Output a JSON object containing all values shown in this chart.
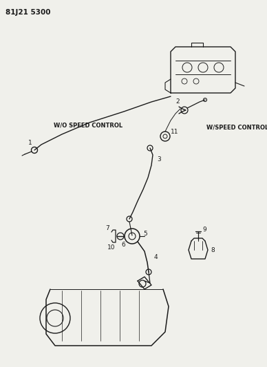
{
  "background_color": "#f0f0eb",
  "line_color": "#1a1a1a",
  "text_color": "#1a1a1a",
  "header": "81J21 5300",
  "wo_speed_label": "W/O SPEED CONTROL",
  "w_speed_label": "W/SPEED CONTROL",
  "figsize": [
    3.88,
    5.33
  ],
  "dpi": 100
}
